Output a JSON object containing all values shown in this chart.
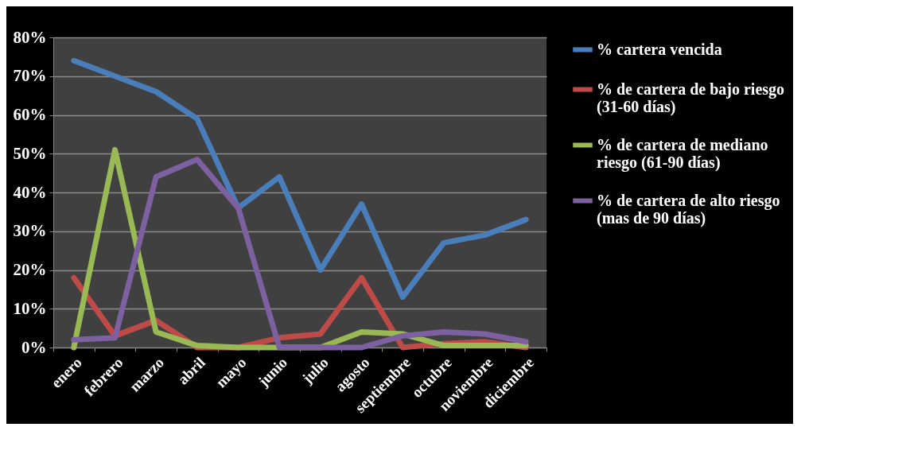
{
  "chart_data": {
    "type": "line",
    "categories": [
      "enero",
      "febrero",
      "marzo",
      "abril",
      "mayo",
      "junio",
      "julio",
      "agosto",
      "septiembre",
      "octubre",
      "noviembre",
      "diciembre"
    ],
    "series": [
      {
        "name": "% cartera vencida",
        "color": "#4a7ebb",
        "values": [
          74,
          70,
          66,
          59,
          36,
          44,
          20,
          37,
          13,
          27,
          29,
          33
        ]
      },
      {
        "name": "% de cartera de bajo riesgo (31-60 días)",
        "color": "#be4b48",
        "values": [
          18,
          3,
          7,
          0,
          0,
          2.5,
          3.5,
          18,
          0,
          1,
          1.5,
          0
        ]
      },
      {
        "name": "% de cartera de mediano riesgo (61-90 días)",
        "color": "#98b954",
        "values": [
          0,
          51,
          4,
          0.5,
          0,
          0,
          0,
          4,
          3.5,
          0.5,
          0.5,
          0.5
        ]
      },
      {
        "name": "% de cartera de alto riesgo (mas de 90  días)",
        "color": "#7d60a0",
        "values": [
          2,
          2.5,
          44,
          48.5,
          36,
          0,
          0,
          0,
          3,
          4,
          3.5,
          1.5
        ]
      }
    ],
    "ylim": [
      0,
      80
    ],
    "yticks": [
      {
        "value": 0,
        "label": "0%"
      },
      {
        "value": 10,
        "label": "10%"
      },
      {
        "value": 20,
        "label": "20%"
      },
      {
        "value": 30,
        "label": "30%"
      },
      {
        "value": 40,
        "label": "40%"
      },
      {
        "value": 50,
        "label": "50%"
      },
      {
        "value": 60,
        "label": "60%"
      },
      {
        "value": 70,
        "label": "70%"
      },
      {
        "value": 80,
        "label": "80%"
      }
    ],
    "grid": "y",
    "legend": "right",
    "marker": "none",
    "line_style": "solid"
  }
}
